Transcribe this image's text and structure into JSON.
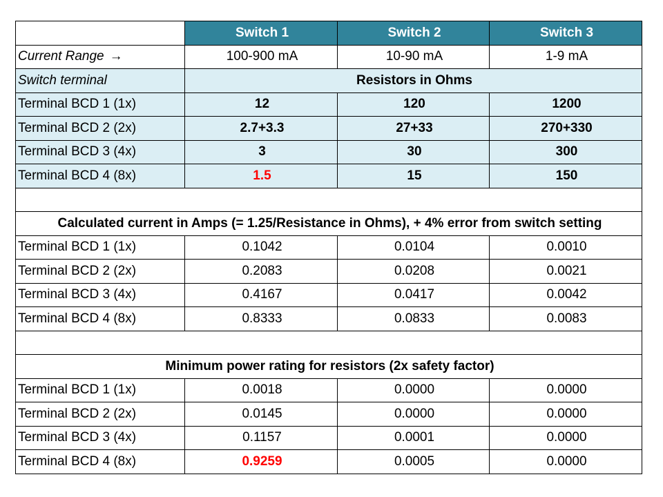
{
  "header": {
    "switches": [
      "Switch 1",
      "Switch 2",
      "Switch 3"
    ]
  },
  "current_range": {
    "label": "Current Range",
    "arrow": "→",
    "values": [
      "100-900 mA",
      "10-90 mA",
      "1-9 mA"
    ]
  },
  "resistors": {
    "label": "Switch terminal",
    "title": "Resistors in Ohms",
    "rows": [
      {
        "terminal": "Terminal BCD 1 (1x)",
        "values": [
          "12",
          "120",
          "1200"
        ]
      },
      {
        "terminal": "Terminal BCD 2 (2x)",
        "values": [
          "2.7+3.3",
          "27+33",
          "270+330"
        ]
      },
      {
        "terminal": "Terminal BCD 3 (4x)",
        "values": [
          "3",
          "30",
          "300"
        ]
      },
      {
        "terminal": "Terminal BCD 4 (8x)",
        "values": [
          "1.5",
          "15",
          "150"
        ]
      }
    ]
  },
  "current": {
    "title": "Calculated current in Amps (= 1.25/Resistance in Ohms), + 4% error from switch setting",
    "rows": [
      {
        "terminal": "Terminal BCD 1 (1x)",
        "values": [
          "0.1042",
          "0.0104",
          "0.0010"
        ]
      },
      {
        "terminal": "Terminal BCD 2 (2x)",
        "values": [
          "0.2083",
          "0.0208",
          "0.0021"
        ]
      },
      {
        "terminal": "Terminal BCD 3 (4x)",
        "values": [
          "0.4167",
          "0.0417",
          "0.0042"
        ]
      },
      {
        "terminal": "Terminal BCD 4 (8x)",
        "values": [
          "0.8333",
          "0.0833",
          "0.0083"
        ]
      }
    ]
  },
  "power": {
    "title": "Minimum power rating for resistors (2x safety factor)",
    "rows": [
      {
        "terminal": "Terminal BCD 1 (1x)",
        "values": [
          "0.0018",
          "0.0000",
          "0.0000"
        ]
      },
      {
        "terminal": "Terminal BCD 2 (2x)",
        "values": [
          "0.0145",
          "0.0000",
          "0.0000"
        ]
      },
      {
        "terminal": "Terminal BCD 3 (4x)",
        "values": [
          "0.1157",
          "0.0001",
          "0.0000"
        ]
      },
      {
        "terminal": "Terminal BCD 4 (8x)",
        "values": [
          "0.9259",
          "0.0005",
          "0.0000"
        ]
      }
    ]
  },
  "colors": {
    "header_bg": "#31849b",
    "header_text": "#ffffff",
    "light_blue_fill": "#dbeef4",
    "highlight_red": "#ff0000"
  }
}
